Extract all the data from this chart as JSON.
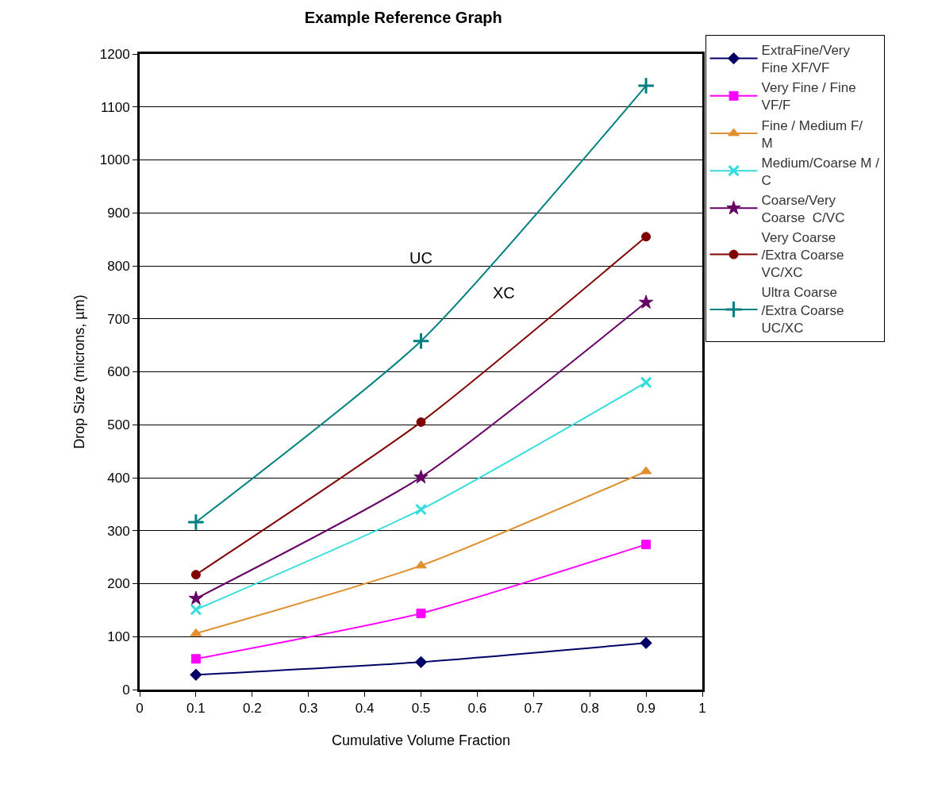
{
  "chart_data": {
    "type": "line",
    "title": "Example Reference Graph",
    "xlabel": "Cumulative Volume Fraction",
    "ylabel": "Drop Size (microns, µm)",
    "x": [
      0.1,
      0.5,
      0.9
    ],
    "series": [
      {
        "name": "ExtraFine/Very Fine XF/VF",
        "color": "#000066",
        "marker": "diamond",
        "values": [
          28,
          52,
          88
        ]
      },
      {
        "name": "Very Fine / Fine  VF/F",
        "color": "#ff00ff",
        "marker": "square",
        "values": [
          58,
          144,
          274
        ]
      },
      {
        "name": "Fine / Medium F/ M",
        "color": "#e09030",
        "marker": "triangle",
        "values": [
          106,
          234,
          412
        ]
      },
      {
        "name": "Medium/Coarse M / C",
        "color": "#33dddd",
        "marker": "cross",
        "values": [
          151,
          340,
          580
        ]
      },
      {
        "name": "Coarse/Very Coarse  C/VC",
        "color": "#660066",
        "marker": "star",
        "values": [
          172,
          401,
          731
        ]
      },
      {
        "name": "Very Coarse /Extra Coarse VC/XC",
        "color": "#800000",
        "marker": "circle",
        "values": [
          217,
          505,
          855
        ]
      },
      {
        "name": "Ultra Coarse /Extra Coarse UC/XC",
        "color": "#008080",
        "marker": "plus",
        "values": [
          316,
          658,
          1140
        ]
      }
    ],
    "xlim": [
      0,
      1
    ],
    "xticks": [
      0,
      0.1,
      0.2,
      0.3,
      0.4,
      0.5,
      0.6,
      0.7,
      0.8,
      0.9,
      1
    ],
    "ylim": [
      0,
      1200
    ],
    "yticks": [
      0,
      100,
      200,
      300,
      400,
      500,
      600,
      700,
      800,
      900,
      1000,
      1100,
      1200
    ],
    "annotations": [
      "UC",
      "XC"
    ],
    "grid": "y",
    "legend": "right",
    "line_style": "solid"
  }
}
